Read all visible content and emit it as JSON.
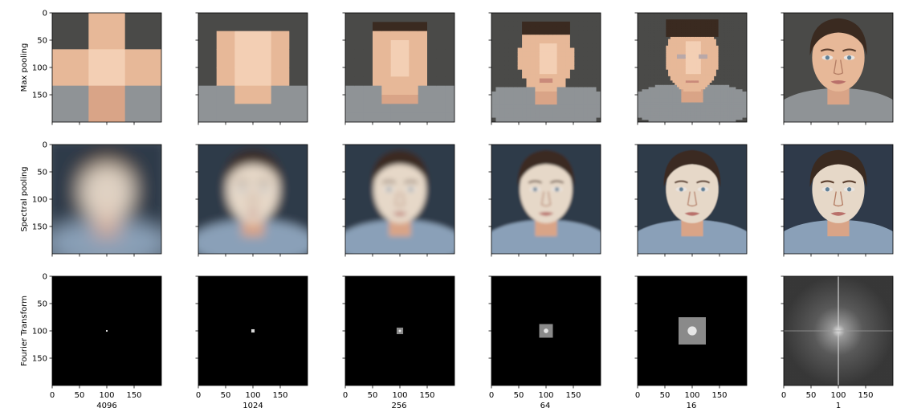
{
  "chart_data": {
    "type": "image-grid",
    "rows": [
      "Max pooling",
      "Spectral pooling",
      "Fourier Transform"
    ],
    "columns": [
      "4096",
      "1024",
      "256",
      "64",
      "16",
      "1"
    ],
    "axes": {
      "xlim": [
        0,
        200
      ],
      "ylim": [
        200,
        0
      ],
      "ticks": [
        "0",
        "50",
        "100",
        "150"
      ],
      "tick_values": [
        0,
        50,
        100,
        150
      ]
    },
    "max_pooling_grid": [
      3,
      6,
      12,
      25,
      50,
      200
    ],
    "spectral_blur_sigma": [
      30,
      14,
      7,
      3.5,
      1.2,
      0
    ],
    "fourier_retained_size": [
      3,
      6,
      12,
      25,
      50,
      200
    ],
    "colors": {
      "background": "#4a4a48",
      "skin": "#e7b898",
      "skin_light": "#f3cfb4",
      "hair": "#3a2a20",
      "shirt": "#8f9396",
      "spectral_bg": "#2f3a4a",
      "spectral_skin": "#e6d8c8",
      "fft_bg": "#000000",
      "fft_spot": "#d8d8d8"
    }
  }
}
